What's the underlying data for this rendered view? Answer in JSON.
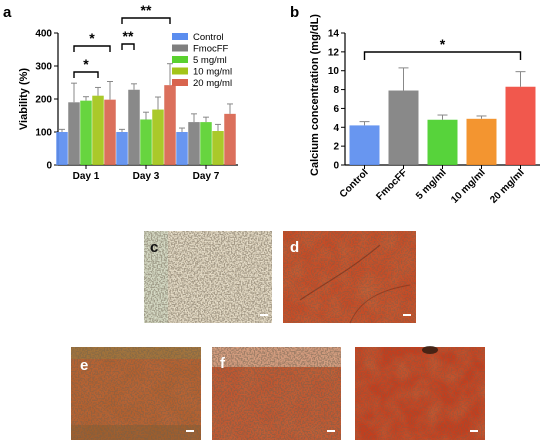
{
  "panels": {
    "a": "a",
    "b": "b",
    "c": "c",
    "d": "d",
    "e": "e",
    "f": "f"
  },
  "chart_data": [
    {
      "type": "bar",
      "ylabel": "Viability (%)",
      "ylim": [
        0,
        400
      ],
      "yticks": [
        0,
        100,
        200,
        300,
        400
      ],
      "categories": [
        "Day 1",
        "Day 3",
        "Day 7"
      ],
      "legend_position": "top-right",
      "series": [
        {
          "name": "Control",
          "color": "#5b8def",
          "values": [
            100,
            100,
            100
          ],
          "errors": [
            8,
            8,
            12
          ]
        },
        {
          "name": "FmocFF",
          "color": "#7f7f7f",
          "values": [
            190,
            228,
            130
          ],
          "errors": [
            58,
            18,
            25
          ]
        },
        {
          "name": "5 mg/ml",
          "color": "#5ad12f",
          "values": [
            195,
            138,
            130
          ],
          "errors": [
            12,
            22,
            15
          ]
        },
        {
          "name": "10 mg/ml",
          "color": "#a3c418",
          "values": [
            210,
            168,
            103
          ],
          "errors": [
            25,
            38,
            20
          ]
        },
        {
          "name": "20 mg/ml",
          "color": "#d8644e",
          "values": [
            198,
            242,
            155
          ],
          "errors": [
            55,
            65,
            30
          ]
        }
      ],
      "significance": [
        {
          "label": "*",
          "from": [
            0,
            1
          ],
          "to": [
            0,
            4
          ]
        },
        {
          "label": "*",
          "from": [
            0,
            1
          ],
          "to": [
            0,
            3
          ]
        },
        {
          "label": "**",
          "from": [
            1,
            0
          ],
          "to": [
            1,
            1
          ]
        },
        {
          "label": "**",
          "from": [
            1,
            0
          ],
          "to": [
            1,
            4
          ]
        }
      ]
    },
    {
      "type": "bar",
      "ylabel": "Calcium concentration (mg/dL)",
      "ylim": [
        0,
        14
      ],
      "yticks": [
        0,
        2,
        4,
        6,
        8,
        10,
        12,
        14
      ],
      "categories": [
        "Control",
        "FmocFF",
        "5 mg/ml",
        "10 mg/ml",
        "20 mg/ml"
      ],
      "values": [
        4.2,
        7.9,
        4.8,
        4.9,
        8.3
      ],
      "errors": [
        0.4,
        2.4,
        0.5,
        0.3,
        1.6
      ],
      "colors": [
        "#5b8def",
        "#7f7f7f",
        "#49cf2a",
        "#f28c1e",
        "#f04a3e"
      ],
      "significance": [
        {
          "label": "*",
          "from": 0,
          "to": 4
        }
      ]
    }
  ],
  "images": [
    {
      "letter": "c",
      "tone": "sparse"
    },
    {
      "letter": "d",
      "tone": "red"
    },
    {
      "letter": "e",
      "tone": "brown"
    },
    {
      "letter": "f",
      "tone": "mixed"
    },
    {
      "letter": "",
      "tone": "dense-red"
    }
  ]
}
